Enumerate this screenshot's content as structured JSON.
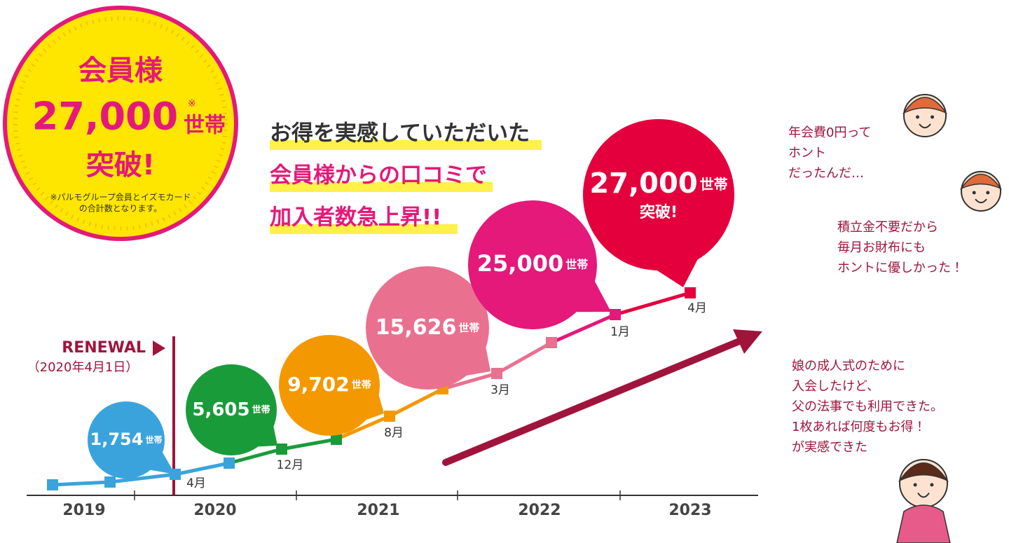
{
  "badge": {
    "line1": "会員様",
    "number": "27,000",
    "note_mark": "※",
    "unit": "世帯",
    "line3": "突破!",
    "footnote": [
      "※パルモグループ会員とイズモカード",
      "の合計数となります。"
    ]
  },
  "headline": [
    "お得を実感していただいた",
    "会員様からの口コミで",
    "加入者数急上昇!!"
  ],
  "renewal": {
    "label": "RENEWAL",
    "date": "（2020年4月1日）"
  },
  "milestones": [
    {
      "value": "1,754",
      "unit": "世帯"
    },
    {
      "value": "5,605",
      "unit": "世帯"
    },
    {
      "value": "9,702",
      "unit": "世帯"
    },
    {
      "value": "15,626",
      "unit": "世帯"
    },
    {
      "value": "25,000",
      "unit": "世帯"
    },
    {
      "value": "27,000",
      "unit": "世帯",
      "extra": "突破!"
    }
  ],
  "point_labels": [
    "4月",
    "12月",
    "8月",
    "3月",
    "1月",
    "4月"
  ],
  "years": [
    "2019",
    "2020",
    "2021",
    "2022",
    "2023"
  ],
  "testimonials": [
    [
      "年会費0円って",
      "ホント",
      "だったんだ…"
    ],
    [
      "積立金不要だから",
      "毎月お財布にも",
      "ホントに優しかった！"
    ],
    [
      "娘の成人式のために",
      "入会したけど、",
      "父の法事でも利用できた。",
      "1枚あれば何度もお得！",
      "が実感できた"
    ]
  ]
}
